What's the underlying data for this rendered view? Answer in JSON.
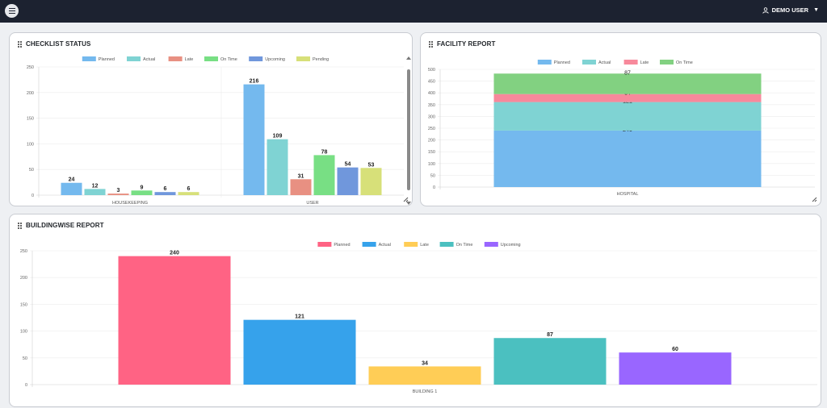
{
  "header": {
    "menu_icon": "hamburger-menu-icon",
    "user_name": "DEMO USER",
    "user_icon": "user-icon",
    "caret_icon": "caret-down-icon"
  },
  "panels": {
    "checklist": {
      "title": "CHECKLIST STATUS",
      "chart_index": 0
    },
    "facility": {
      "title": "FACILITY REPORT",
      "chart_index": 1
    },
    "building": {
      "title": "BUILDINGWISE REPORT",
      "chart_index": 2
    }
  },
  "colors": {
    "planned_light": "#74b9ee",
    "actual_teal": "#7fd3d3",
    "late_salmon": "#e89082",
    "ontime_green": "#78df84",
    "upcoming_blue": "#7097dc",
    "pending_yellow": "#d7e079",
    "facility_late_pink": "#f7899b",
    "facility_ontime_green": "#82d181",
    "bw_planned": "#ff6384",
    "bw_actual": "#36a2eb",
    "bw_late": "#ffcd56",
    "bw_ontime": "#4bc0c0",
    "bw_upcoming": "#9966ff"
  },
  "chart_data": [
    {
      "type": "bar",
      "title": "CHECKLIST STATUS",
      "categories": [
        "HOUSEKEEPING",
        "USER"
      ],
      "ylim": [
        0,
        250
      ],
      "yticks": [
        0,
        50,
        100,
        150,
        200,
        250
      ],
      "legend_position": "top",
      "grid": true,
      "series": [
        {
          "name": "Planned",
          "color": "#74b9ee",
          "values": [
            24,
            216
          ]
        },
        {
          "name": "Actual",
          "color": "#7fd3d3",
          "values": [
            12,
            109
          ]
        },
        {
          "name": "Late",
          "color": "#e89082",
          "values": [
            3,
            31
          ]
        },
        {
          "name": "On Time",
          "color": "#78df84",
          "values": [
            9,
            78
          ]
        },
        {
          "name": "Upcoming",
          "color": "#7097dc",
          "values": [
            6,
            54
          ]
        },
        {
          "name": "Pending",
          "color": "#d7e079",
          "values": [
            6,
            53
          ]
        }
      ]
    },
    {
      "type": "bar",
      "stacked": true,
      "title": "FACILITY REPORT",
      "categories": [
        "HOSPITAL"
      ],
      "ylim": [
        0,
        500
      ],
      "yticks": [
        0,
        50,
        100,
        150,
        200,
        250,
        300,
        350,
        400,
        450,
        500
      ],
      "legend_position": "top",
      "grid": true,
      "series": [
        {
          "name": "Planned",
          "color": "#74b9ee",
          "values": [
            240
          ]
        },
        {
          "name": "Actual",
          "color": "#7fd3d3",
          "values": [
            121
          ]
        },
        {
          "name": "Late",
          "color": "#f7899b",
          "values": [
            34
          ]
        },
        {
          "name": "On Time",
          "color": "#82d181",
          "values": [
            87
          ]
        }
      ]
    },
    {
      "type": "bar",
      "title": "BUILDINGWISE REPORT",
      "categories": [
        "BUILDING 1"
      ],
      "ylim": [
        0,
        250
      ],
      "yticks": [
        0,
        50,
        100,
        150,
        200,
        250
      ],
      "legend_position": "top",
      "grid": true,
      "series": [
        {
          "name": "Planned",
          "color": "#ff6384",
          "values": [
            240
          ]
        },
        {
          "name": "Actual",
          "color": "#36a2eb",
          "values": [
            121
          ]
        },
        {
          "name": "Late",
          "color": "#ffcd56",
          "values": [
            34
          ]
        },
        {
          "name": "On Time",
          "color": "#4bc0c0",
          "values": [
            87
          ]
        },
        {
          "name": "Upcoming",
          "color": "#9966ff",
          "values": [
            60
          ]
        }
      ]
    }
  ]
}
